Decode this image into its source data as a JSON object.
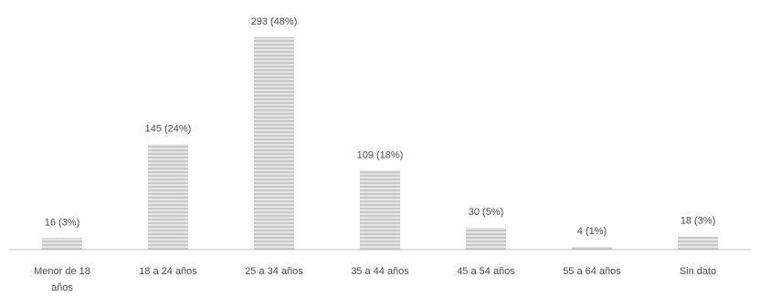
{
  "chart_data": {
    "type": "bar",
    "categories": [
      "Menor de 18 años",
      "18 a 24 años",
      "25 a 34 años",
      "35 a 44 años",
      "45 a 54 años",
      "55 a 64 años",
      "Sin dato"
    ],
    "values": [
      16,
      145,
      293,
      109,
      30,
      4,
      18
    ],
    "data_labels": [
      "16 (3%)",
      "145 (24%)",
      "293 (48%)",
      "109 (18%)",
      "30 (5%)",
      "4 (1%)",
      "18 (3%)"
    ],
    "title": "",
    "xlabel": "",
    "ylabel": "",
    "ylim": [
      0,
      300
    ],
    "grid": false,
    "legend": "none",
    "bar_color": "#c8c8c8",
    "stripe_color": "#e6e6e6",
    "axis_color": "#bfbfbf"
  }
}
